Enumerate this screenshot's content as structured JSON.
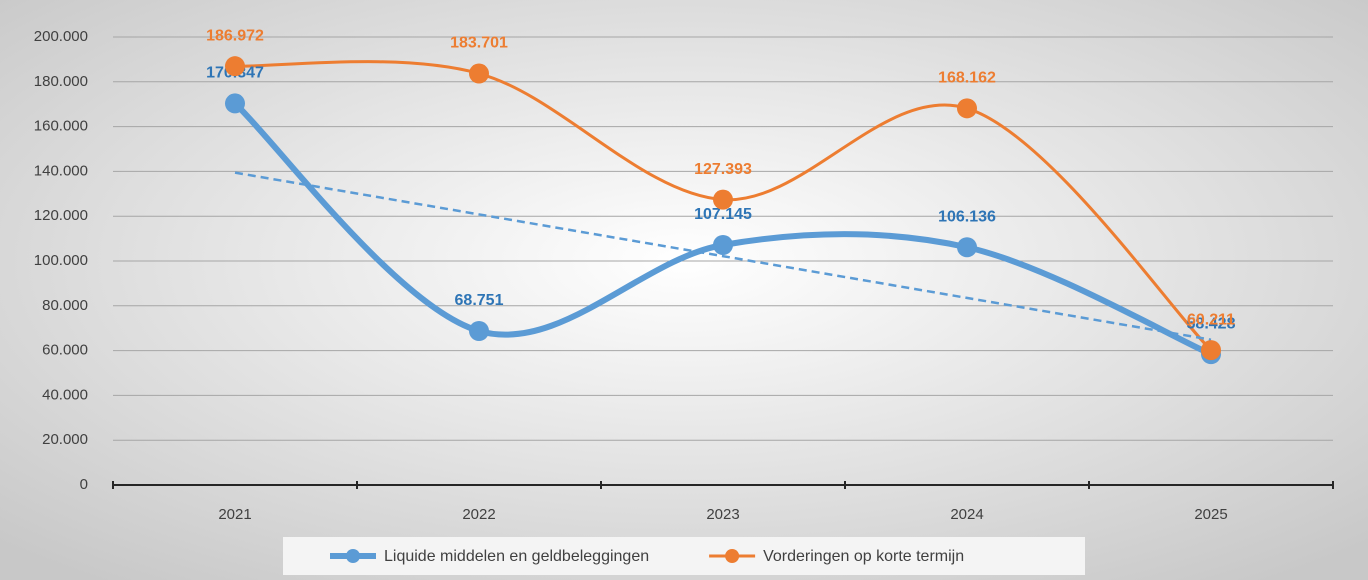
{
  "chart_data": {
    "type": "line",
    "categories": [
      "2021",
      "2022",
      "2023",
      "2024",
      "2025"
    ],
    "series": [
      {
        "name": "Liquide middelen en geldbeleggingen",
        "color": "#5b9bd5",
        "label_color": "#2e75b6",
        "trendline": true,
        "values": [
          170347,
          68751,
          107145,
          106136,
          58428
        ],
        "value_labels": [
          "170.347",
          "68.751",
          "107.145",
          "106.136",
          "58.428"
        ]
      },
      {
        "name": "Vorderingen op korte termijn",
        "color": "#ed7d31",
        "label_color": "#ed7d31",
        "values": [
          186972,
          183701,
          127393,
          168162,
          60211
        ],
        "value_labels": [
          "186.972",
          "183.701",
          "127.393",
          "168.162",
          "60.211"
        ]
      }
    ],
    "ylim": [
      0,
      200000
    ],
    "yticks": [
      0,
      {
        "value": 20000,
        "label": "20.000"
      },
      {
        "value": 40000,
        "label": "40.000"
      },
      {
        "value": 60000,
        "label": "60.000"
      },
      {
        "value": 80000,
        "label": "80.000"
      },
      {
        "value": 100000,
        "label": "100.000"
      },
      {
        "value": 120000,
        "label": "120.000"
      },
      {
        "value": 140000,
        "label": "140.000"
      },
      {
        "value": 160000,
        "label": "160.000"
      },
      {
        "value": 180000,
        "label": "180.000"
      },
      {
        "value": 200000,
        "label": "200.000"
      }
    ],
    "grid": true,
    "smooth": true,
    "legend": "bottom"
  }
}
